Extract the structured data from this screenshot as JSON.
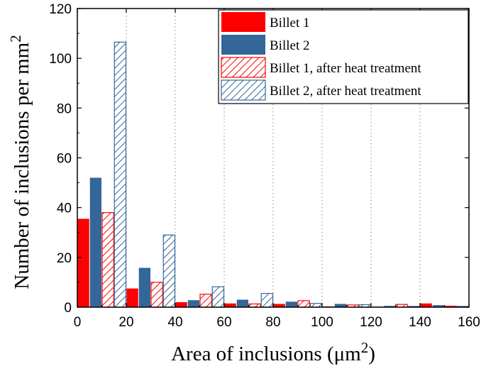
{
  "chart_data": {
    "type": "bar",
    "title": "",
    "xlabel": "Area of inclusions (μm",
    "xlabel_sup": "2",
    "xlabel_close": ")",
    "ylabel": "Number of inclusions per mm",
    "ylabel_sup": "2",
    "xlim": [
      0,
      160
    ],
    "ylim": [
      0,
      120
    ],
    "x_ticks": [
      "0",
      "20",
      "40",
      "60",
      "80",
      "100",
      "120",
      "140",
      "160"
    ],
    "y_ticks": [
      "0",
      "20",
      "40",
      "60",
      "80",
      "100",
      "120"
    ],
    "bin_width": 20,
    "bin_starts": [
      0,
      20,
      40,
      60,
      80,
      100,
      120,
      140
    ],
    "grid": "vertical dotted",
    "legend_position": "top-right",
    "series": [
      {
        "name": "Billet 1",
        "color": "#ff0000",
        "style": "solid",
        "values": [
          35.5,
          7.5,
          2.0,
          1.5,
          1.3,
          0.3,
          0.2,
          1.5
        ]
      },
      {
        "name": "Billet 2",
        "color": "#336699",
        "style": "solid",
        "values": [
          52.0,
          15.8,
          2.8,
          3.0,
          2.2,
          1.3,
          0.5,
          0.8
        ]
      },
      {
        "name": "Billet 1, after heat treatment",
        "color": "#ff0000",
        "style": "hatched",
        "values": [
          38.0,
          10.0,
          5.2,
          1.3,
          2.6,
          0.9,
          1.1,
          0.4
        ]
      },
      {
        "name": "Billet 2, after heat treatment",
        "color": "#336699",
        "style": "hatched",
        "values": [
          106.5,
          29.0,
          8.2,
          5.5,
          1.5,
          1.0,
          0.3,
          0.3
        ]
      }
    ]
  }
}
